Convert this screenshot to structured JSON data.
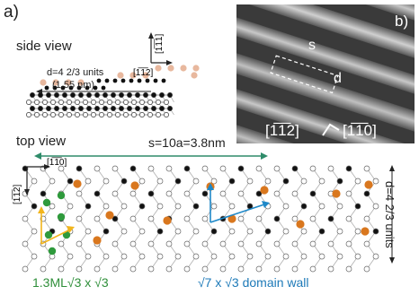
{
  "panel_a_label": "a)",
  "panel_b_label": "b)",
  "side_view_label": "side view",
  "top_view_label": "top view",
  "d_units_line1": "d=4 2/3 units",
  "d_units_line2": "(1.55 nm)",
  "s_label": "s=10a=3.8nm",
  "axis_side_up": "[1̅1̅1]",
  "axis_side_right": "[1̅1̅2]",
  "axis_top_right": "[1̅1̅0]",
  "axis_top_down": "[1̅1̅2]",
  "d_vertical_label": "d=4 2/3 units",
  "photo_s": "s",
  "photo_d": "d",
  "photo_axis_left": "[1̅1̅2]",
  "photo_axis_right": "[1̅1̅0]",
  "green_caption": "1.3ML√3 x √3",
  "blue_caption": "√7 x √3 domain wall",
  "colors": {
    "orange": "#d9771e",
    "green": "#2f9a3c",
    "blue": "#1e88c8",
    "yellow": "#f2b51c",
    "salmon": "#e8b89e",
    "teal_arrow": "#2f8c6a"
  }
}
